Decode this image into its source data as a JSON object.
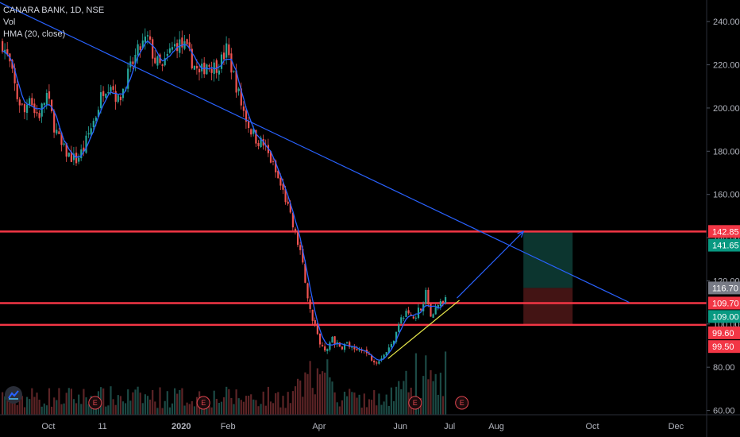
{
  "header": {
    "symbol": "CANARA BANK, 1D, NSE",
    "indicators": [
      "Vol",
      "HMA (20, close)"
    ]
  },
  "chart_data": {
    "type": "candlestick",
    "y_axis": {
      "ylim": [
        58,
        250
      ],
      "ticks": [
        60,
        80,
        100,
        120,
        140,
        160,
        180,
        200,
        220,
        240
      ]
    },
    "x_axis": {
      "tick_labels": [
        "Oct",
        "11",
        "2020",
        "Feb",
        "Apr",
        "Jun",
        "Jul",
        "Aug",
        "Oct",
        "Dec"
      ]
    },
    "price_tags": [
      {
        "value": 142.85,
        "label": "142.85",
        "color": "#f23645"
      },
      {
        "value": 141.65,
        "label": "141.65",
        "color": "#089981"
      },
      {
        "value": 116.7,
        "label": "116.70",
        "color": "#787b86"
      },
      {
        "value": 109.7,
        "label": "109.70",
        "color": "#f23645"
      },
      {
        "value": 109.0,
        "label": "109.00",
        "color": "#089981"
      },
      {
        "value": 99.6,
        "label": "99.60",
        "color": "#f23645"
      },
      {
        "value": 99.5,
        "label": "99.50",
        "color": "#f23645"
      }
    ],
    "horizontal_levels": [
      142.85,
      109.7,
      99.6
    ],
    "price_path": [
      [
        0,
        230
      ],
      [
        3,
        220
      ],
      [
        6,
        205
      ],
      [
        9,
        198
      ],
      [
        11,
        207
      ],
      [
        13,
        198
      ],
      [
        15,
        197
      ],
      [
        18,
        206
      ],
      [
        21,
        192
      ],
      [
        24,
        182
      ],
      [
        27,
        178
      ],
      [
        30,
        176
      ],
      [
        33,
        181
      ],
      [
        35,
        188
      ],
      [
        38,
        197
      ],
      [
        41,
        209
      ],
      [
        44,
        212
      ],
      [
        47,
        203
      ],
      [
        50,
        212
      ],
      [
        53,
        221
      ],
      [
        56,
        228
      ],
      [
        59,
        232
      ],
      [
        62,
        222
      ],
      [
        65,
        218
      ],
      [
        68,
        226
      ],
      [
        71,
        230
      ],
      [
        74,
        228
      ],
      [
        77,
        222
      ],
      [
        80,
        215
      ],
      [
        83,
        221
      ],
      [
        86,
        219
      ],
      [
        89,
        222
      ],
      [
        91,
        227
      ],
      [
        94,
        215
      ],
      [
        97,
        202
      ],
      [
        100,
        192
      ],
      [
        103,
        186
      ],
      [
        106,
        183
      ],
      [
        109,
        176
      ],
      [
        112,
        167
      ],
      [
        115,
        158
      ],
      [
        118,
        145
      ],
      [
        121,
        134
      ],
      [
        123,
        120
      ],
      [
        125,
        106
      ],
      [
        127,
        100
      ],
      [
        129,
        90
      ],
      [
        131,
        88
      ],
      [
        134,
        93
      ],
      [
        137,
        89
      ],
      [
        140,
        91
      ],
      [
        143,
        87
      ],
      [
        146,
        89
      ],
      [
        149,
        85
      ],
      [
        152,
        83
      ],
      [
        155,
        86
      ],
      [
        158,
        90
      ],
      [
        161,
        101
      ],
      [
        164,
        105
      ],
      [
        167,
        103
      ],
      [
        170,
        108
      ],
      [
        172,
        114
      ],
      [
        174,
        104
      ],
      [
        177,
        109
      ],
      [
        180,
        112
      ]
    ],
    "candle_count": 181,
    "future_bars": 75,
    "trendline": {
      "from": [
        -12,
        255
      ],
      "to": [
        255,
        110
      ]
    },
    "support_line": {
      "from": [
        157,
        84
      ],
      "to": [
        186,
        111
      ]
    },
    "projection_arrow": {
      "from": [
        185,
        112
      ],
      "to": [
        212,
        142.85
      ]
    },
    "position_box": {
      "start": 212,
      "end": 232,
      "entry": 116.7,
      "target": 142.85,
      "stop": 99.6
    },
    "earnings_markers": [
      {
        "bar": 38,
        "label": "E"
      },
      {
        "bar": 82,
        "label": "E"
      },
      {
        "bar": 168,
        "label": "E"
      },
      {
        "bar": 187,
        "label": "E"
      }
    ],
    "volume_profile": "spike around crash (Mar), low before"
  }
}
